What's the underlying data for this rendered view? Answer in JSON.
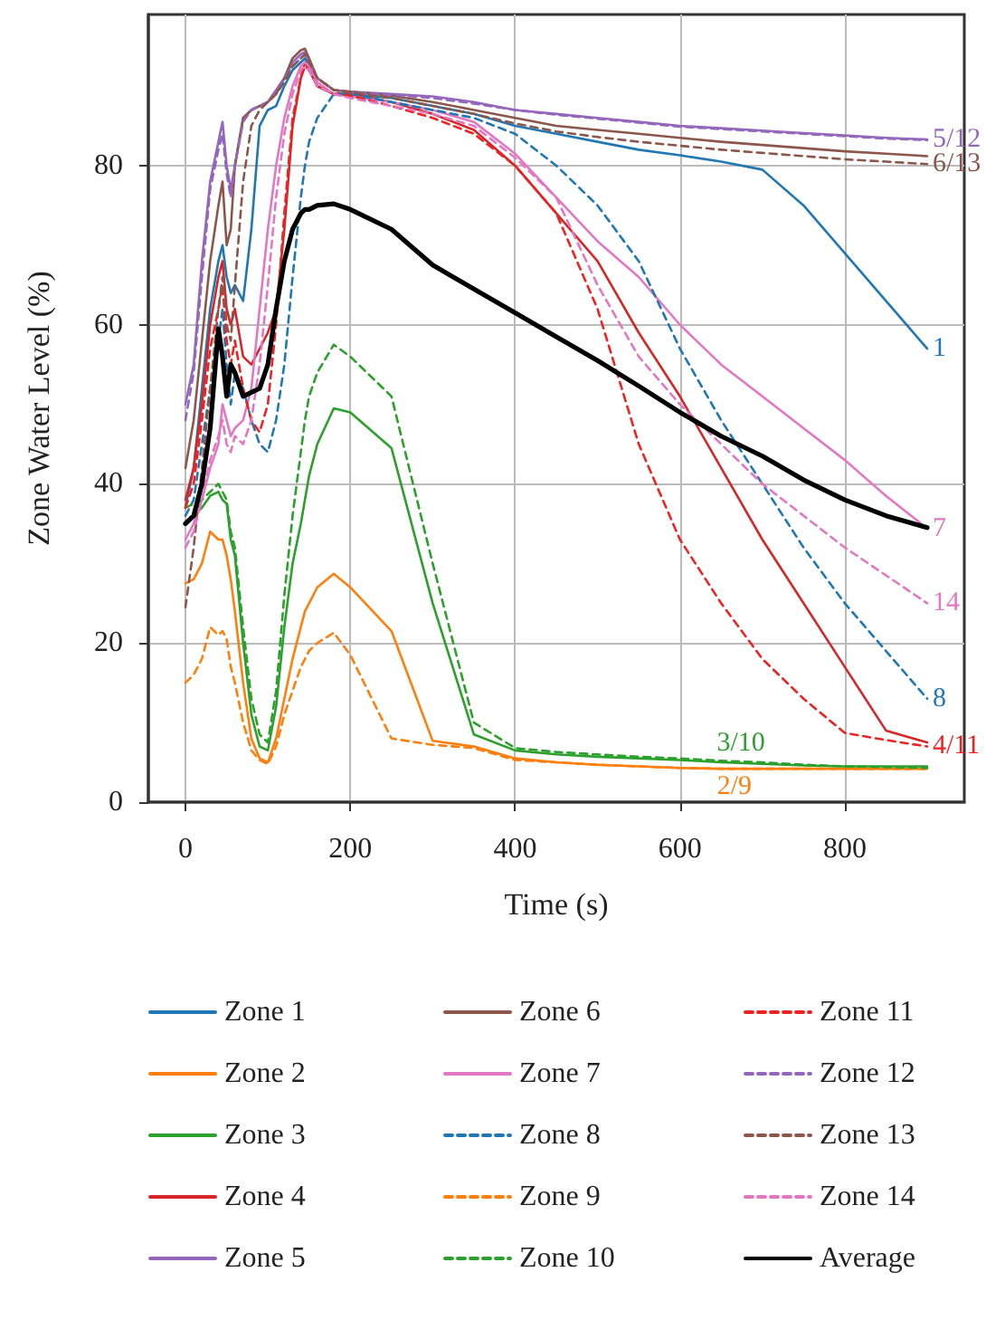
{
  "chart_data": {
    "type": "line",
    "xlabel": "Time (s)",
    "ylabel": "Zone Water Level (%)",
    "x": [
      0,
      10,
      20,
      30,
      40,
      45,
      50,
      55,
      60,
      70,
      80,
      90,
      100,
      110,
      120,
      130,
      140,
      145,
      150,
      160,
      180,
      200,
      250,
      300,
      350,
      400,
      450,
      500,
      550,
      600,
      650,
      700,
      750,
      800,
      850,
      900
    ],
    "xlim": [
      -45,
      945
    ],
    "xticks": [
      0,
      200,
      400,
      600,
      800
    ],
    "ylim": [
      0,
      99
    ],
    "yticks": [
      0,
      20,
      40,
      60,
      80
    ],
    "grid": true,
    "legend": "bottom",
    "marker": "none",
    "series": [
      {
        "name": "Zone 1",
        "color": "#1f77b4",
        "line_style": "solid",
        "values": [
          37,
          42,
          52,
          62,
          68,
          70,
          66,
          64,
          65,
          63,
          72,
          85,
          87,
          87.5,
          90,
          92,
          93,
          93.5,
          92.5,
          90,
          89,
          89,
          88.5,
          87.5,
          86.5,
          85,
          84,
          83,
          82,
          81.3,
          80.5,
          79.5,
          75,
          69,
          63,
          57
        ]
      },
      {
        "name": "Zone 2",
        "color": "#ff7f0e",
        "line_style": "solid",
        "values": [
          27.5,
          28,
          30,
          34,
          33,
          33,
          31,
          28,
          24,
          15,
          8,
          5.5,
          5,
          8,
          13,
          18,
          22,
          24,
          25,
          27,
          28.7,
          27,
          21.5,
          7.7,
          7,
          5.5,
          5,
          4.7,
          4.5,
          4.3,
          4.2,
          4.2,
          4.2,
          4.2,
          4.2,
          4.2
        ]
      },
      {
        "name": "Zone 3",
        "color": "#2ca02c",
        "line_style": "solid",
        "values": [
          35,
          36,
          37,
          38.5,
          39,
          38,
          37.5,
          33,
          31,
          20,
          11,
          7,
          6.5,
          12,
          22,
          30,
          35,
          38,
          41,
          45,
          49.5,
          49,
          44.5,
          25,
          8.5,
          6.5,
          6,
          5.7,
          5.5,
          5.3,
          5,
          4.8,
          4.6,
          4.5,
          4.5,
          4.5
        ]
      },
      {
        "name": "Zone 4",
        "color": "#d62728",
        "line_style": "solid",
        "values": [
          38,
          42,
          50,
          60,
          66,
          68,
          62,
          60,
          62,
          56,
          55,
          57,
          59,
          62,
          72,
          85,
          91,
          93,
          92,
          90,
          89,
          89,
          88,
          86.5,
          84.5,
          80,
          74,
          68,
          59,
          51,
          42,
          33,
          25,
          17,
          9,
          7.5
        ]
      },
      {
        "name": "Zone 5",
        "color": "#9467bd",
        "line_style": "solid",
        "values": [
          50,
          55,
          68,
          78,
          83,
          85.5,
          80,
          77,
          80,
          86,
          87,
          87.5,
          88,
          89.5,
          91,
          93,
          94,
          94.3,
          93,
          91,
          89.5,
          89.3,
          89,
          88.7,
          88,
          87,
          86.5,
          86,
          85.5,
          85,
          84.7,
          84.4,
          84.1,
          83.8,
          83.5,
          83.3
        ]
      },
      {
        "name": "Zone 6",
        "color": "#8c564b",
        "line_style": "solid",
        "values": [
          42,
          48,
          58,
          68,
          75,
          78,
          70,
          72,
          80,
          86,
          87,
          87.5,
          88,
          89,
          91,
          93.5,
          94.5,
          94.7,
          93.5,
          91,
          89.5,
          89.3,
          88.8,
          88,
          87,
          86,
          85,
          84.5,
          84,
          83.5,
          83,
          82.6,
          82.2,
          81.8,
          81.5,
          81.2
        ]
      },
      {
        "name": "Zone 7",
        "color": "#e377c2",
        "line_style": "solid",
        "values": [
          33,
          35,
          38,
          42,
          45,
          50,
          48,
          46,
          47,
          48,
          52,
          62,
          72,
          80,
          86,
          90,
          92.5,
          93,
          92.5,
          90.5,
          89,
          88.7,
          88,
          87,
          85.5,
          81.5,
          76,
          70.5,
          66,
          60,
          55,
          51,
          47,
          43,
          38.5,
          34.4
        ]
      },
      {
        "name": "Zone 8",
        "color": "#1f77b4",
        "line_style": "dashed",
        "values": [
          36,
          38,
          45,
          52,
          58,
          62,
          55,
          50,
          54,
          52,
          48,
          45,
          44,
          48,
          55,
          66,
          76,
          80,
          83,
          86,
          89,
          89,
          88,
          87,
          86,
          84,
          80,
          75,
          68,
          57,
          48,
          40,
          32,
          25,
          19,
          13
        ]
      },
      {
        "name": "Zone 9",
        "color": "#ff7f0e",
        "line_style": "dashed",
        "values": [
          15,
          16,
          18,
          22,
          21,
          21.5,
          20.5,
          17,
          15,
          10,
          6.5,
          5.3,
          4.8,
          7,
          11,
          14,
          17,
          18,
          19,
          20,
          21.3,
          18.5,
          8,
          7.2,
          6.8,
          5.3,
          5,
          4.7,
          4.5,
          4.3,
          4.2,
          4.2,
          4.2,
          4.2,
          4.2,
          4.2
        ]
      },
      {
        "name": "Zone 10",
        "color": "#2ca02c",
        "line_style": "dashed",
        "values": [
          37,
          37.5,
          38,
          39,
          40,
          39,
          38,
          34,
          32,
          22,
          13,
          8.5,
          7.5,
          14,
          26,
          36,
          44,
          48,
          51,
          54,
          57.5,
          56,
          51,
          30,
          10,
          6.8,
          6.3,
          6,
          5.7,
          5.5,
          5.2,
          5,
          4.7,
          4.5,
          4.4,
          4.3
        ]
      },
      {
        "name": "Zone 11",
        "color": "#ee2222",
        "line_style": "dashed",
        "values": [
          37,
          40,
          48,
          57,
          62,
          65,
          58,
          55,
          58,
          52,
          48,
          46.5,
          50,
          60,
          74,
          86,
          91,
          92.5,
          92,
          90,
          89,
          88.8,
          87.5,
          86,
          84,
          80,
          74,
          62,
          45,
          33,
          25,
          18,
          13,
          8.7,
          7.8,
          7
        ]
      },
      {
        "name": "Zone 12",
        "color": "#9467bd",
        "line_style": "dashed",
        "values": [
          48,
          54,
          66,
          77,
          82,
          84,
          79,
          76,
          80,
          85.5,
          87,
          87.5,
          88,
          89.5,
          91,
          92.5,
          93.5,
          94,
          93,
          91,
          89.5,
          89.2,
          88.9,
          88.5,
          87.8,
          87,
          86.4,
          85.9,
          85.4,
          84.9,
          84.6,
          84.3,
          84,
          83.7,
          83.4,
          83.2
        ]
      },
      {
        "name": "Zone 13",
        "color": "#8c564b",
        "line_style": "dashed",
        "values": [
          24.5,
          32,
          42,
          52,
          62,
          66,
          60,
          58,
          65,
          78,
          85,
          87,
          88,
          89,
          90.5,
          92.5,
          93.5,
          94,
          93,
          91,
          89.5,
          89.2,
          88.5,
          87.5,
          86.5,
          85.3,
          84.3,
          83.6,
          83,
          82.5,
          82,
          81.6,
          81.2,
          80.8,
          80.5,
          80.2
        ]
      },
      {
        "name": "Zone 14",
        "color": "#e377c2",
        "line_style": "dashed",
        "values": [
          32,
          34,
          38,
          43,
          46,
          48,
          45,
          44,
          46,
          45,
          48,
          55,
          65,
          76,
          84,
          89,
          92,
          92.5,
          92,
          90,
          89,
          88.5,
          87.5,
          86.5,
          85,
          81,
          76,
          65,
          56,
          50,
          45,
          40,
          36,
          32,
          28.5,
          25
        ]
      },
      {
        "name": "Average",
        "color": "#000000",
        "line_style": "solid",
        "values": [
          35,
          36,
          40,
          47,
          59.5,
          56,
          51,
          55,
          54,
          51,
          51.5,
          52,
          55,
          62,
          68,
          72,
          74,
          74.5,
          74.5,
          75,
          75.2,
          74.5,
          72,
          67.5,
          64.5,
          61.5,
          58.5,
          55.5,
          52.3,
          49,
          46,
          43.5,
          40.5,
          38,
          36,
          34.5
        ]
      }
    ],
    "annotations": [
      {
        "text": "5/12",
        "x": 900,
        "y": 83.3
      },
      {
        "text": "6/13",
        "x": 900,
        "y": 80.2
      },
      {
        "text": "1",
        "x": 900,
        "y": 57
      },
      {
        "text": "7",
        "x": 900,
        "y": 34.4
      },
      {
        "text": "14",
        "x": 900,
        "y": 25
      },
      {
        "text": "8",
        "x": 900,
        "y": 13
      },
      {
        "text": "4/11",
        "x": 900,
        "y": 7
      },
      {
        "text": "3/10",
        "x": 674,
        "y": 5.1
      },
      {
        "text": "2/9",
        "x": 666,
        "y": 4.2
      }
    ]
  }
}
